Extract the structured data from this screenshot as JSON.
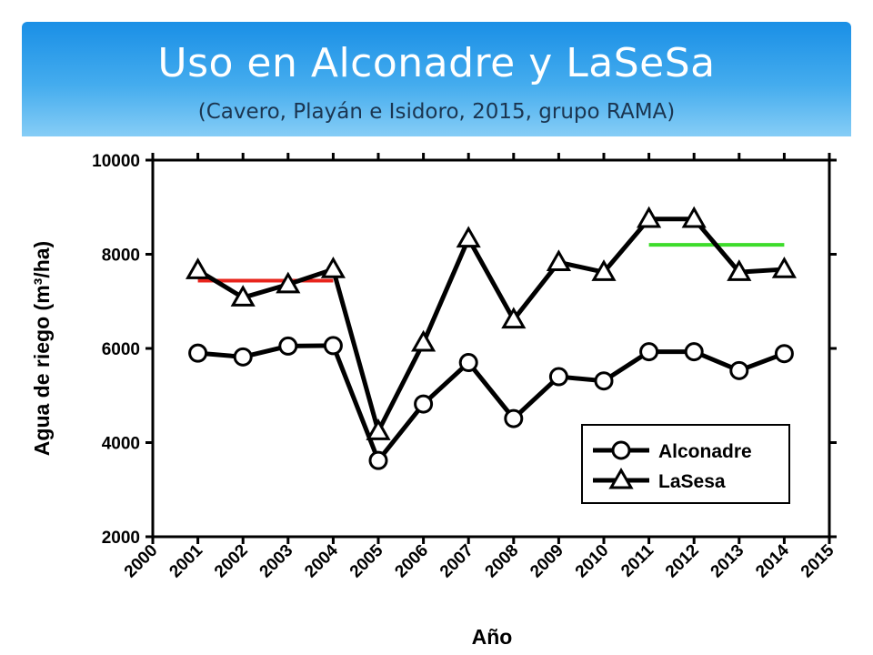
{
  "slide": {
    "title": "Uso en Alconadre y LaSeSa",
    "subtitle": "(Cavero, Playán e Isidoro, 2015, grupo RAMA)"
  },
  "chart_data": {
    "type": "line",
    "xlabel": "Año",
    "ylabel": "Agua de riego (m³/ha)",
    "xlim": [
      2000,
      2015
    ],
    "ylim": [
      2000,
      10000
    ],
    "xticks": [
      2000,
      2001,
      2002,
      2003,
      2004,
      2005,
      2006,
      2007,
      2008,
      2009,
      2010,
      2011,
      2012,
      2013,
      2014,
      2015
    ],
    "yticks": [
      2000,
      4000,
      6000,
      8000,
      10000
    ],
    "grid": false,
    "legend_position": "bottom-right",
    "x": [
      2001,
      2002,
      2003,
      2004,
      2005,
      2006,
      2007,
      2008,
      2009,
      2010,
      2011,
      2012,
      2013,
      2014
    ],
    "series": [
      {
        "name": "Alconadre",
        "marker": "circle",
        "color": "#000000",
        "values": [
          5900,
          5820,
          6050,
          6060,
          3620,
          4820,
          5700,
          4510,
          5400,
          5310,
          5930,
          5930,
          5530,
          5890
        ]
      },
      {
        "name": "LaSesa",
        "marker": "triangle",
        "color": "#000000",
        "values": [
          7660,
          7080,
          7360,
          7680,
          4240,
          6120,
          8330,
          6610,
          7830,
          7620,
          8750,
          8750,
          7620,
          7680
        ]
      }
    ],
    "reference_lines": [
      {
        "color": "#e8241c",
        "x_start": 2001,
        "x_end": 2004,
        "y": 7440
      },
      {
        "color": "#3ddc2a",
        "x_start": 2011,
        "x_end": 2014,
        "y": 8200
      }
    ]
  }
}
